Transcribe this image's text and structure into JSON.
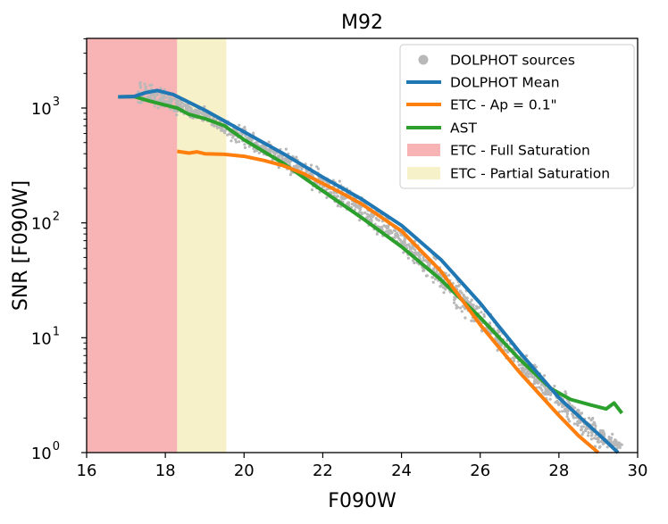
{
  "chart_data": {
    "type": "line",
    "title": "M92",
    "xlabel": "F090W",
    "ylabel": "SNR [F090W]",
    "xlim": [
      16,
      30
    ],
    "ylim": [
      1,
      4000
    ],
    "yscale": "log",
    "x_ticks": [
      "16",
      "18",
      "20",
      "22",
      "24",
      "26",
      "28",
      "30"
    ],
    "y_ticks": [
      {
        "base": "10",
        "exp": "0",
        "value": 1
      },
      {
        "base": "10",
        "exp": "1",
        "value": 10
      },
      {
        "base": "10",
        "exp": "2",
        "value": 100
      },
      {
        "base": "10",
        "exp": "3",
        "value": 1000
      }
    ],
    "shaded_regions": [
      {
        "name": "ETC - Full Saturation",
        "x_range": [
          16,
          18.3
        ],
        "color": "#f7a7a7"
      },
      {
        "name": "ETC - Partial Saturation",
        "x_range": [
          18.3,
          19.55
        ],
        "color": "#f5efbe"
      }
    ],
    "scatter": {
      "name": "DOLPHOT sources",
      "color": "#b8b8b8",
      "band": [
        {
          "x": 17.3,
          "lo": 1000,
          "hi": 1900
        },
        {
          "x": 18.0,
          "lo": 900,
          "hi": 1500
        },
        {
          "x": 19.0,
          "lo": 720,
          "hi": 1050
        },
        {
          "x": 20.0,
          "lo": 420,
          "hi": 720
        },
        {
          "x": 21.0,
          "lo": 270,
          "hi": 470
        },
        {
          "x": 22.0,
          "lo": 160,
          "hi": 300
        },
        {
          "x": 23.0,
          "lo": 95,
          "hi": 185
        },
        {
          "x": 24.0,
          "lo": 52,
          "hi": 95
        },
        {
          "x": 25.0,
          "lo": 24,
          "hi": 48
        },
        {
          "x": 26.0,
          "lo": 10,
          "hi": 22
        },
        {
          "x": 27.0,
          "lo": 4.5,
          "hi": 8.5
        },
        {
          "x": 28.0,
          "lo": 2.0,
          "hi": 4.0
        },
        {
          "x": 29.0,
          "lo": 1.05,
          "hi": 1.9
        },
        {
          "x": 29.6,
          "lo": 1.0,
          "hi": 1.3
        }
      ]
    },
    "series": [
      {
        "name": "DOLPHOT Mean",
        "color": "#1f77b4",
        "x": [
          16.8,
          17.2,
          17.5,
          17.8,
          18.2,
          19.0,
          20.0,
          21.0,
          22.0,
          23.0,
          24.0,
          25.0,
          26.0,
          27.0,
          28.0,
          28.7,
          29.1,
          29.5
        ],
        "y": [
          1250,
          1260,
          1360,
          1420,
          1310,
          960,
          620,
          400,
          250,
          160,
          95,
          48,
          20,
          7.5,
          3.0,
          1.8,
          1.35,
          1.0
        ]
      },
      {
        "name": "ETC - Ap = 0.1\"",
        "color": "#ff7f0e",
        "x": [
          18.3,
          18.6,
          18.8,
          19.0,
          19.5,
          20.0,
          20.5,
          21.0,
          21.5,
          22.0,
          22.5,
          23.0,
          24.0,
          25.0,
          26.0,
          27.0,
          28.0,
          28.5,
          29.0
        ],
        "y": [
          420,
          405,
          415,
          400,
          395,
          380,
          350,
          315,
          270,
          220,
          180,
          145,
          85,
          38,
          13,
          5.0,
          2.1,
          1.4,
          1.0
        ]
      },
      {
        "name": "AST",
        "color": "#2ca02c",
        "x": [
          16.8,
          17.2,
          17.6,
          18.0,
          18.3,
          18.6,
          19.0,
          19.5,
          20.0,
          21.0,
          22.0,
          23.0,
          24.0,
          25.0,
          26.0,
          27.0,
          27.8,
          28.3,
          28.8,
          29.2,
          29.4,
          29.6
        ],
        "y": [
          1250,
          1260,
          1150,
          1060,
          1000,
          880,
          810,
          700,
          530,
          330,
          190,
          110,
          62,
          32,
          15,
          6.5,
          3.6,
          2.9,
          2.6,
          2.4,
          2.7,
          2.2
        ]
      }
    ],
    "legend": {
      "position": "upper right",
      "entries": [
        {
          "label": "DOLPHOT sources",
          "kind": "dot",
          "color": "#b8b8b8"
        },
        {
          "label": "DOLPHOT Mean",
          "kind": "line",
          "color": "#1f77b4"
        },
        {
          "label": "ETC - Ap = 0.1\"",
          "kind": "line",
          "color": "#ff7f0e"
        },
        {
          "label": "AST",
          "kind": "line",
          "color": "#2ca02c"
        },
        {
          "label": "ETC - Full Saturation",
          "kind": "patch",
          "color": "#f7a7a7"
        },
        {
          "label": "ETC - Partial Saturation",
          "kind": "patch",
          "color": "#f5efbe"
        }
      ]
    }
  }
}
